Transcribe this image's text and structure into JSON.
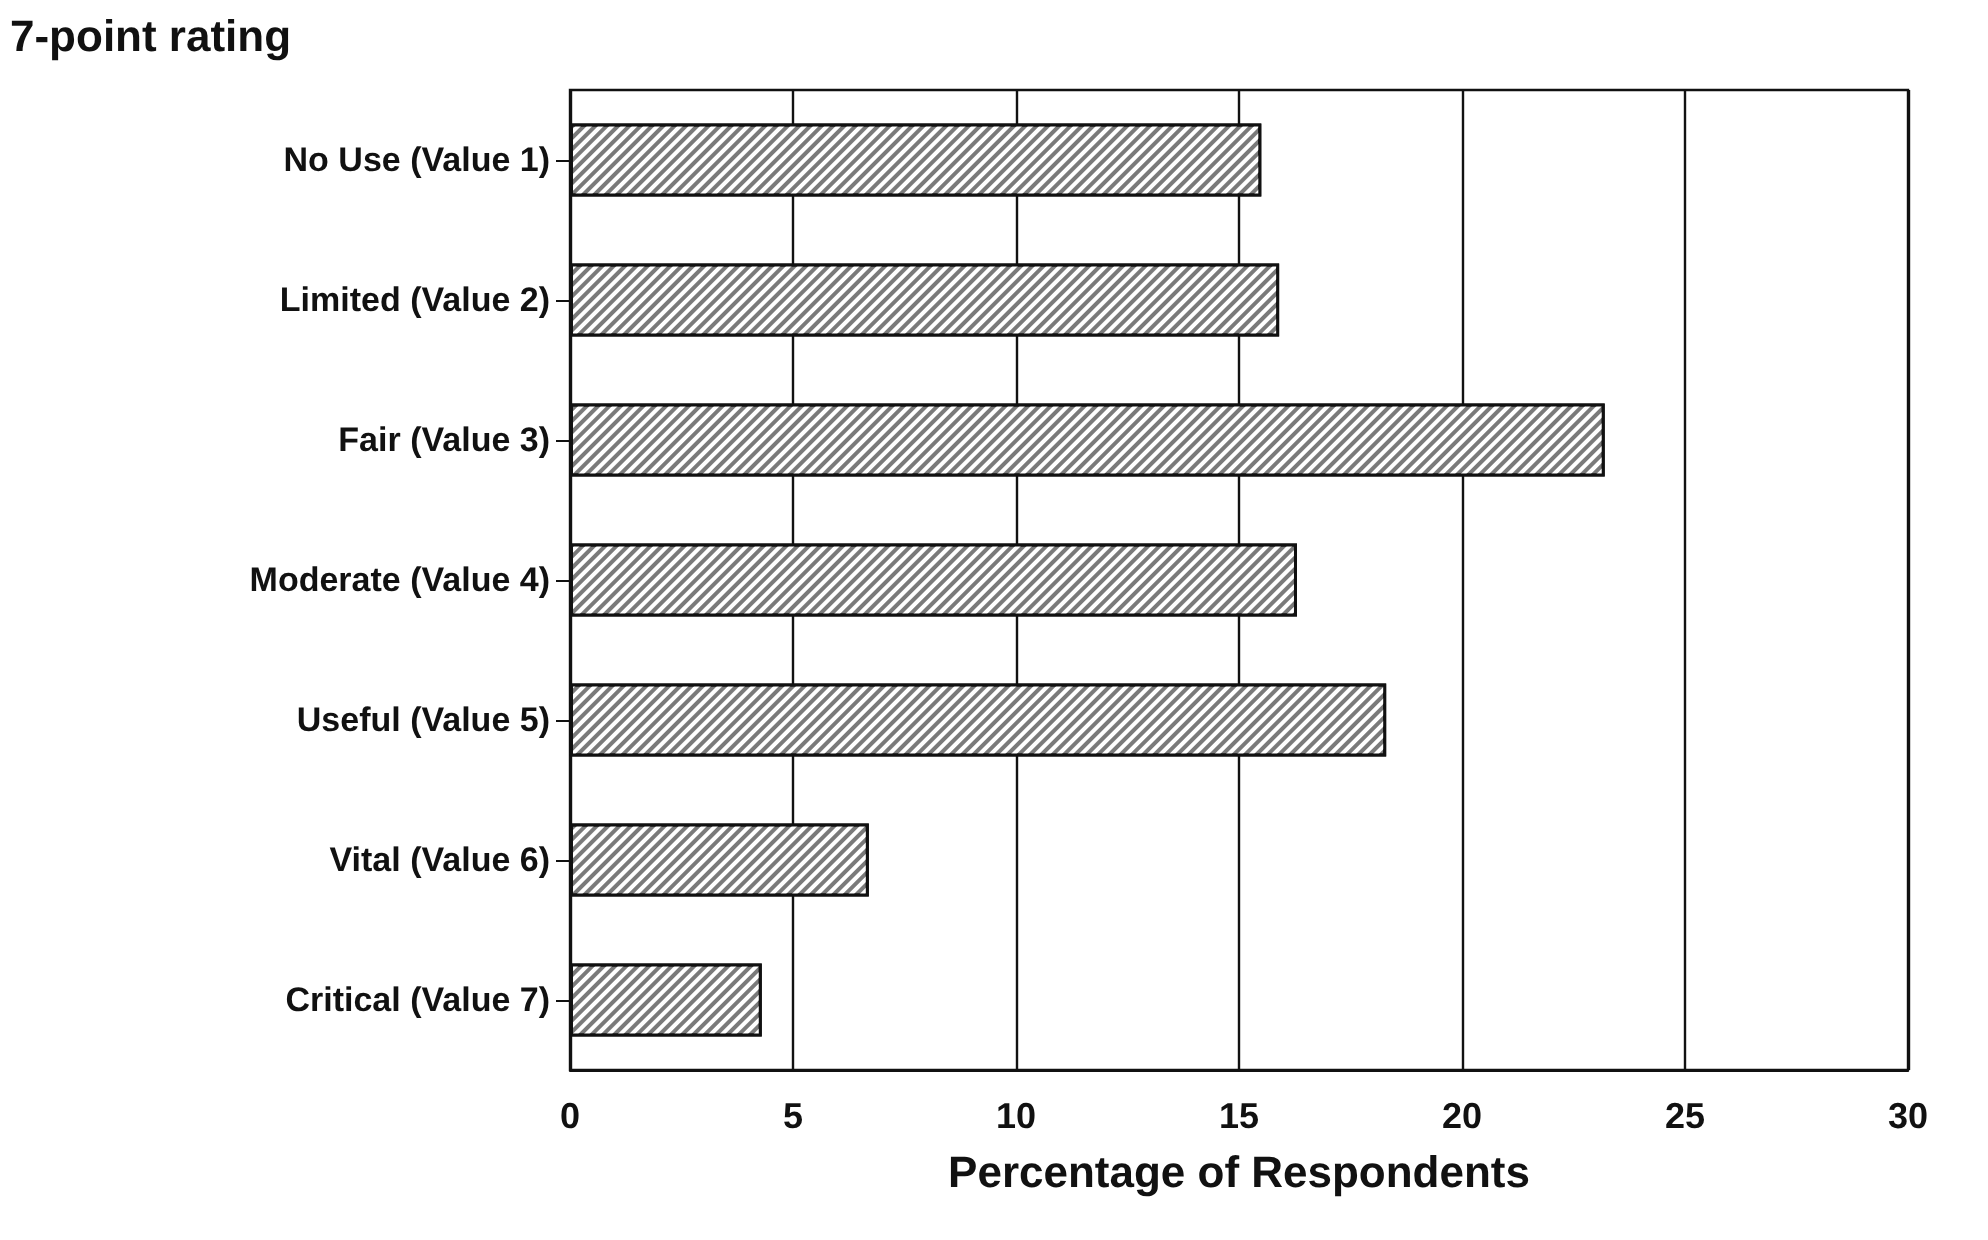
{
  "chart_data": {
    "type": "bar",
    "orientation": "horizontal",
    "title": "7-point rating",
    "xlabel": "Percentage of Respondents",
    "categories": [
      "No Use (Value 1)",
      "Limited (Value 2)",
      "Fair (Value 3)",
      "Moderate (Value 4)",
      "Useful (Value 5)",
      "Vital (Value 6)",
      "Critical (Value 7)"
    ],
    "values": [
      15.5,
      15.9,
      23.2,
      16.3,
      18.3,
      6.7,
      4.3
    ],
    "color": "#7a7a7a",
    "xlim": [
      0,
      30
    ],
    "xticks": [
      0,
      5,
      10,
      15,
      20,
      25,
      30
    ],
    "grid": "x"
  }
}
